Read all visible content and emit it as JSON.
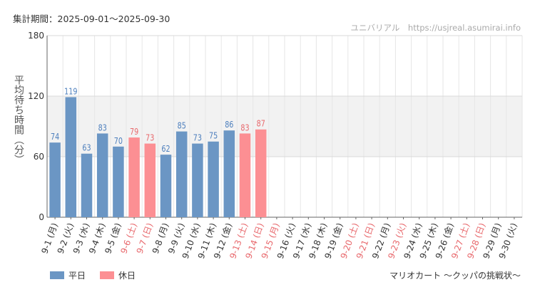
{
  "header": {
    "period": "集計期間：2025-09-01～2025-09-30",
    "watermark": "ユニバリアル　https://usjreal.asumirai.info"
  },
  "footer": {
    "attraction": "マリオカート ～クッパの挑戦状～"
  },
  "colors": {
    "weekday": "#6b96c4",
    "holiday": "#fc8f93",
    "weekday_label": "#4d7fbd",
    "holiday_label": "#e8686c",
    "band": "#f2f2f2",
    "grid": "#e6e6e6"
  },
  "chart_data": {
    "type": "bar",
    "ylabel": "平均待ち時間（分）",
    "ylim": [
      0,
      180
    ],
    "yticks": [
      0,
      60,
      120,
      180
    ],
    "band": [
      60,
      120
    ],
    "grid": true,
    "legend_position": "bottom-left",
    "legend": [
      {
        "name": "平日",
        "color": "#6b96c4"
      },
      {
        "name": "休日",
        "color": "#fc8f93"
      }
    ],
    "categories": [
      "9-1 (月)",
      "9-2 (火)",
      "9-3 (水)",
      "9-4 (木)",
      "9-5 (金)",
      "9-6 (土)",
      "9-7 (日)",
      "9-8 (月)",
      "9-9 (火)",
      "9-10 (水)",
      "9-11 (木)",
      "9-12 (金)",
      "9-13 (土)",
      "9-14 (日)",
      "9-15 (月)",
      "9-16 (火)",
      "9-17 (水)",
      "9-18 (木)",
      "9-19 (金)",
      "9-20 (土)",
      "9-21 (日)",
      "9-22 (月)",
      "9-23 (火)",
      "9-24 (水)",
      "9-25 (木)",
      "9-26 (金)",
      "9-27 (土)",
      "9-28 (日)",
      "9-29 (月)",
      "9-30 (火)"
    ],
    "values": [
      74,
      119,
      63,
      83,
      70,
      79,
      73,
      62,
      85,
      73,
      75,
      86,
      83,
      87,
      null,
      null,
      null,
      null,
      null,
      null,
      null,
      null,
      null,
      null,
      null,
      null,
      null,
      null,
      null,
      null
    ],
    "holiday": [
      false,
      false,
      false,
      false,
      false,
      true,
      true,
      false,
      false,
      false,
      false,
      false,
      true,
      true,
      true,
      false,
      false,
      false,
      false,
      true,
      true,
      false,
      true,
      false,
      false,
      false,
      true,
      true,
      false,
      false
    ]
  }
}
